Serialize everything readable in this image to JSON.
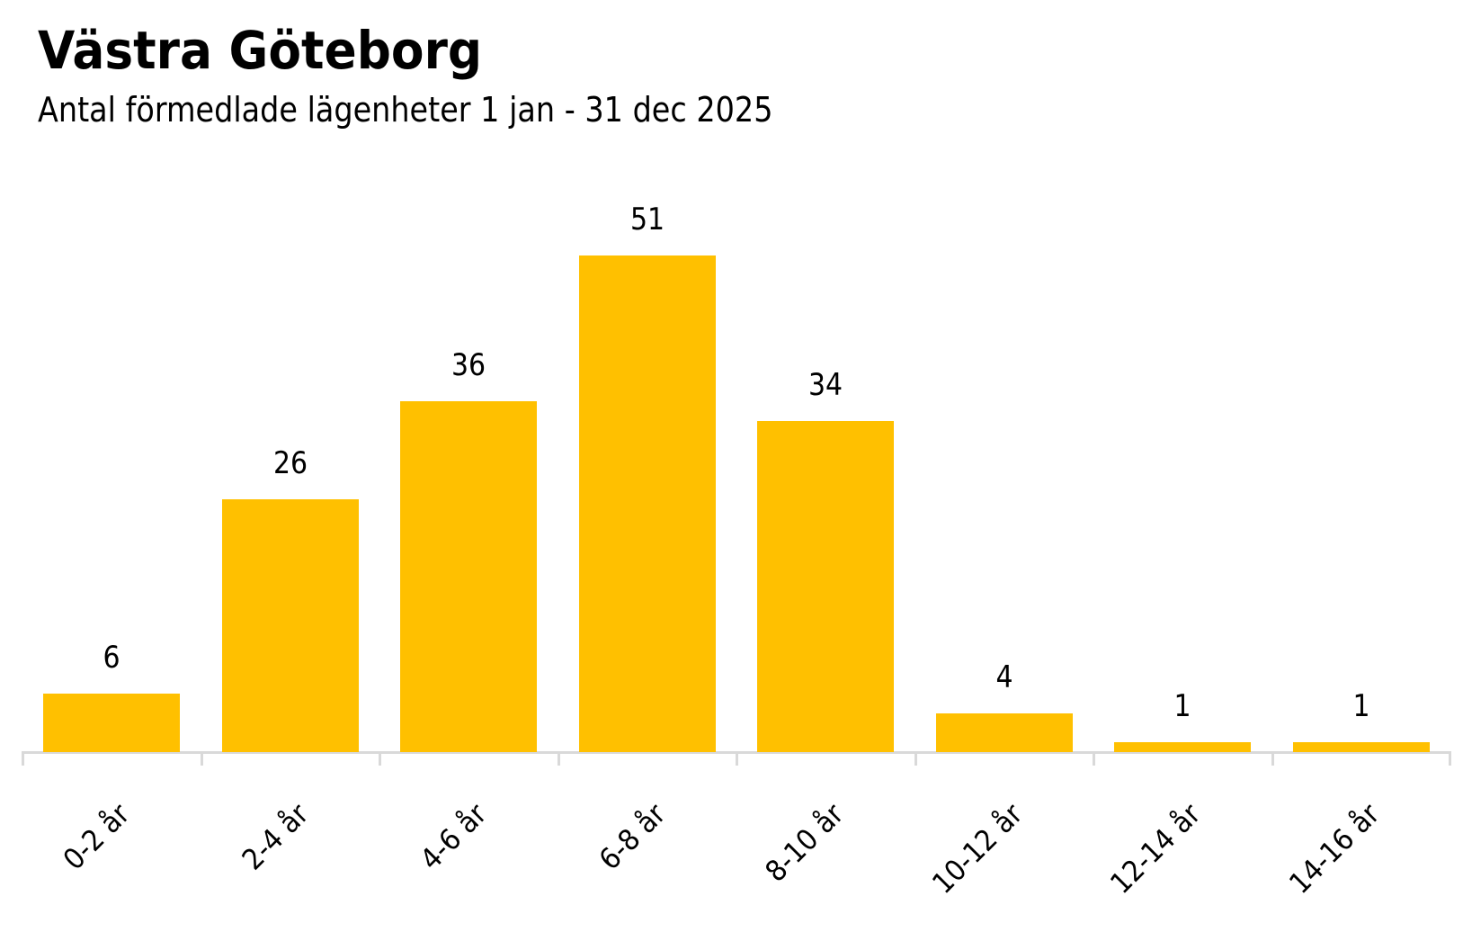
{
  "header": {
    "title": "Västra Göteborg",
    "subtitle": "Antal förmedlade lägenheter 1 jan - 31 dec 2025"
  },
  "colors": {
    "bar": "#FFC000",
    "axis": "#D9D9D9",
    "text": "#000000",
    "background": "#FFFFFF"
  },
  "chart_data": {
    "type": "bar",
    "title": "Västra Göteborg",
    "subtitle": "Antal förmedlade lägenheter 1 jan - 31 dec 2025",
    "xlabel": "",
    "ylabel": "",
    "categories": [
      "0-2 år",
      "2-4 år",
      "4-6 år",
      "6-8 år",
      "8-10 år",
      "10-12 år",
      "12-14 år",
      "14-16 år"
    ],
    "values": [
      6,
      26,
      36,
      51,
      34,
      4,
      1,
      1
    ],
    "data_labels": [
      "6",
      "26",
      "36",
      "51",
      "34",
      "4",
      "1",
      "1"
    ],
    "ylim": [
      0,
      51
    ],
    "grid": false,
    "legend": null,
    "x_tick_rotation": -45
  }
}
